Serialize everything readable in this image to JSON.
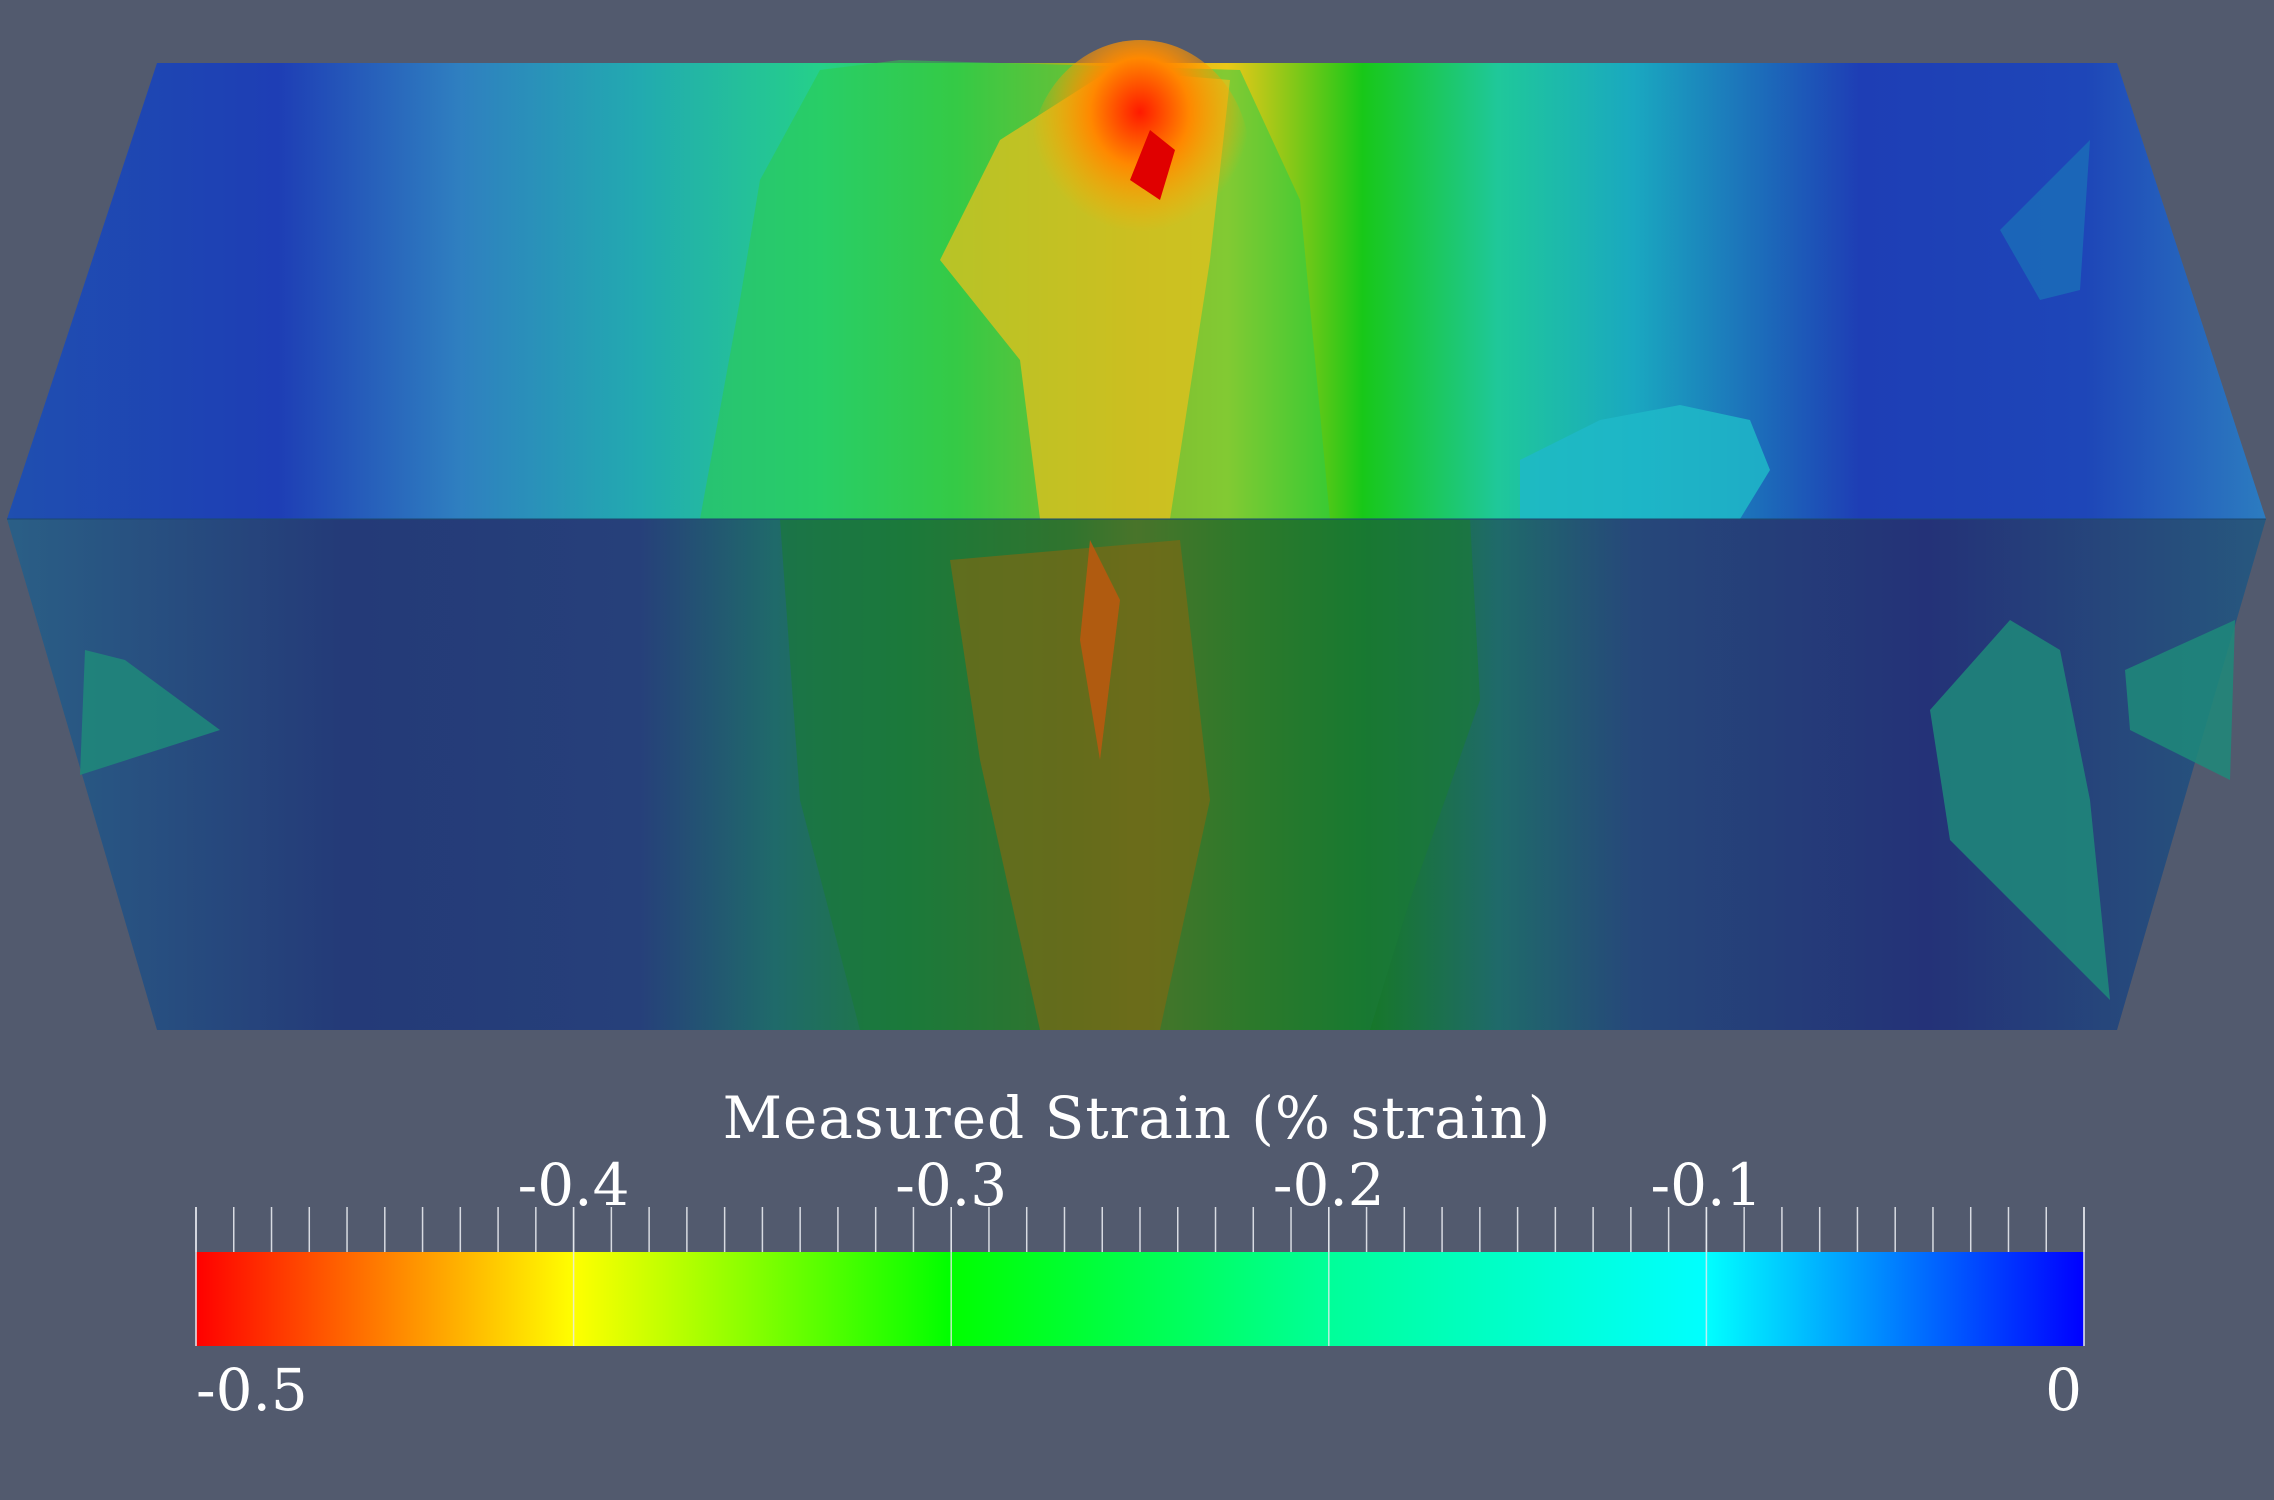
{
  "scalar_bar": {
    "title": "Measured Strain (% strain)",
    "range": [
      -0.5,
      0
    ],
    "min_label": "-0.5",
    "max_label": "0",
    "major_ticks": [
      {
        "value": -0.4,
        "label": "-0.4"
      },
      {
        "value": -0.3,
        "label": "-0.3"
      },
      {
        "value": -0.2,
        "label": "-0.2"
      },
      {
        "value": -0.1,
        "label": "-0.1"
      }
    ],
    "minor_tick_step": 0.01,
    "colormap": [
      {
        "value": -0.5,
        "color": "#ff0000"
      },
      {
        "value": -0.4,
        "color": "#ffff00"
      },
      {
        "value": -0.3,
        "color": "#00ff00"
      },
      {
        "value": -0.2,
        "color": "#00ff99"
      },
      {
        "value": -0.1,
        "color": "#00ffff"
      },
      {
        "value": 0.0,
        "color": "#0000ff"
      }
    ]
  },
  "colors": {
    "background": "#525a6e",
    "text": "#ffffff"
  }
}
